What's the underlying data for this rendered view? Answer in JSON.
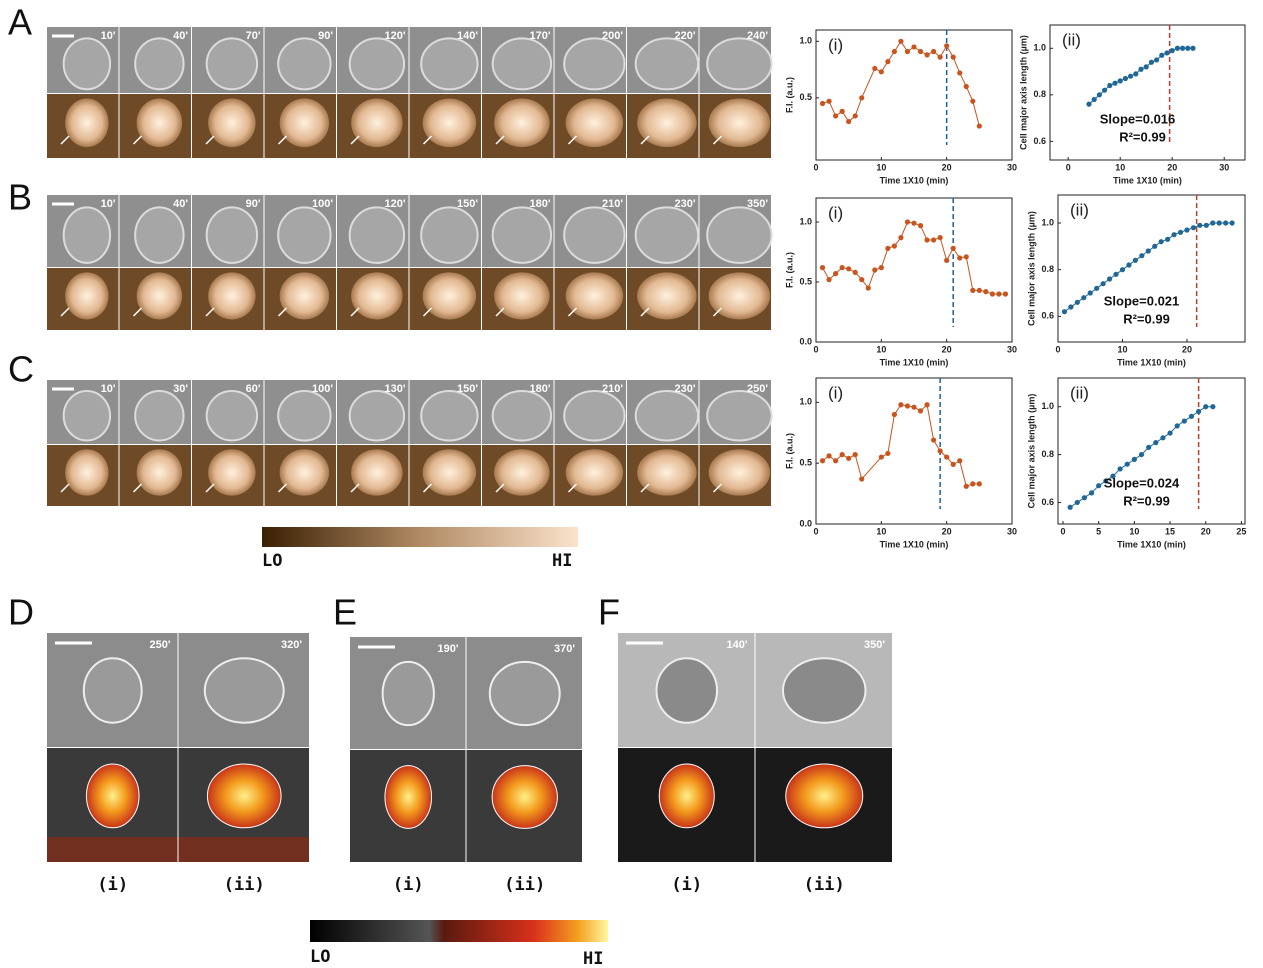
{
  "panels": [
    {
      "label": "A",
      "times": [
        "10'",
        "40'",
        "70'",
        "90'",
        "120'",
        "140'",
        "170'",
        "200'",
        "220'",
        "240'"
      ]
    },
    {
      "label": "B",
      "times": [
        "10'",
        "40'",
        "90'",
        "100'",
        "120'",
        "150'",
        "180'",
        "210'",
        "230'",
        "350'"
      ]
    },
    {
      "label": "C",
      "times": [
        "10'",
        "30'",
        "60'",
        "100'",
        "130'",
        "150'",
        "180'",
        "210'",
        "230'",
        "250'"
      ]
    },
    {
      "label": "D",
      "times": [
        "250'",
        "320'"
      ],
      "sublabels": [
        "(i)",
        "(ii)"
      ]
    },
    {
      "label": "E",
      "times": [
        "190'",
        "370'"
      ],
      "sublabels": [
        "(i)",
        "(ii)"
      ]
    },
    {
      "label": "F",
      "times": [
        "140'",
        "350'"
      ],
      "sublabels": [
        "(i)",
        "(ii)"
      ]
    }
  ],
  "colorbars": [
    {
      "low": "LO",
      "high": "HI"
    },
    {
      "low": "LO",
      "high": "HI"
    }
  ],
  "chart_data": [
    {
      "type": "line",
      "title": "(i)",
      "xlabel": "Time 1X10 (min)",
      "ylabel": "F.I. (a.u.)",
      "x": [
        1,
        2,
        3,
        4,
        5,
        6,
        7,
        9,
        10,
        11,
        12,
        13,
        14,
        15,
        16,
        17,
        18,
        19,
        20,
        21,
        22,
        23,
        24,
        25
      ],
      "series": [
        {
          "color": "#c8541e",
          "values": [
            0.45,
            0.47,
            0.34,
            0.38,
            0.29,
            0.34,
            0.5,
            0.76,
            0.73,
            0.82,
            0.91,
            1.0,
            0.91,
            0.95,
            0.91,
            0.88,
            0.91,
            0.86,
            0.96,
            0.86,
            0.72,
            0.6,
            0.47,
            0.25
          ]
        }
      ],
      "xlim": [
        0,
        30
      ],
      "ylim": [
        -0.05,
        1.1
      ],
      "xticks": [
        0,
        10,
        20,
        30
      ],
      "yticks": [
        0.5,
        {
          "value": 1,
          "label": "1.0"
        }
      ],
      "vline": {
        "x": 20,
        "color": "#1f5fa0"
      }
    },
    {
      "type": "line",
      "title": "(ii)",
      "xlabel": "Time 1X10 (min)",
      "ylabel": "Cell major axis length (µm)",
      "x": [
        4,
        5,
        6,
        7,
        8,
        9,
        10,
        11,
        12,
        13,
        14,
        15,
        16,
        17,
        18,
        19,
        20,
        21,
        22,
        23,
        24
      ],
      "series": [
        {
          "color": "#1f6796",
          "values": [
            0.76,
            0.78,
            0.8,
            0.82,
            0.84,
            0.85,
            0.86,
            0.87,
            0.88,
            0.89,
            0.91,
            0.92,
            0.94,
            0.95,
            0.97,
            0.98,
            0.99,
            1.0,
            1.0,
            1.0,
            1.0
          ]
        }
      ],
      "xlim": [
        -3.5,
        34
      ],
      "ylim": [
        0.52,
        1.1
      ],
      "xticks": [
        0,
        10,
        20,
        30
      ],
      "yticks": [
        0.6,
        0.8,
        {
          "value": 1,
          "label": "1.0"
        }
      ],
      "vline": {
        "x": 19.5,
        "color": "#b5412a"
      },
      "annotations": [
        "Slope=0.016",
        "R²=0.99"
      ]
    },
    {
      "type": "line",
      "title": "(i)",
      "xlabel": "Time 1X10 (min)",
      "ylabel": "F.I. (a.u.)",
      "x": [
        1,
        2,
        3,
        4,
        5,
        6,
        7,
        8,
        9,
        10,
        11,
        12,
        13,
        14,
        15,
        16,
        17,
        18,
        19,
        20,
        21,
        22,
        23,
        24,
        25,
        26,
        27,
        28,
        29
      ],
      "series": [
        {
          "color": "#c8541e",
          "values": [
            0.62,
            0.52,
            0.57,
            0.62,
            0.61,
            0.58,
            0.52,
            0.45,
            0.6,
            0.62,
            0.78,
            0.8,
            0.87,
            1.0,
            0.99,
            0.97,
            0.85,
            0.85,
            0.87,
            0.68,
            0.78,
            0.7,
            0.71,
            0.43,
            0.43,
            0.42,
            0.4,
            0.4,
            0.4
          ]
        }
      ],
      "xlim": [
        0,
        30
      ],
      "ylim": [
        0,
        1.2
      ],
      "xticks": [
        0,
        10,
        20,
        30
      ],
      "yticks": [
        {
          "value": 0,
          "label": "0.0"
        },
        0.5,
        {
          "value": 1,
          "label": "1.0"
        }
      ],
      "vline": {
        "x": 21,
        "color": "#1f5fa0"
      }
    },
    {
      "type": "line",
      "title": "(ii)",
      "xlabel": "Time 1X10 (min)",
      "ylabel": "Cell major axis length (µm)",
      "x": [
        1,
        2,
        3,
        4,
        5,
        6,
        7,
        8,
        9,
        10,
        11,
        12,
        13,
        14,
        15,
        16,
        17,
        18,
        19,
        20,
        21,
        22,
        23,
        24,
        25,
        26,
        27
      ],
      "series": [
        {
          "color": "#1f6796",
          "values": [
            0.62,
            0.64,
            0.66,
            0.68,
            0.7,
            0.72,
            0.74,
            0.76,
            0.78,
            0.8,
            0.82,
            0.84,
            0.86,
            0.88,
            0.9,
            0.92,
            0.93,
            0.95,
            0.96,
            0.97,
            0.98,
            0.99,
            0.99,
            1.0,
            1.0,
            1.0,
            1.0
          ]
        }
      ],
      "xlim": [
        0,
        29
      ],
      "ylim": [
        0.49,
        1.12
      ],
      "xticks": [
        0,
        10,
        20
      ],
      "yticks": [
        0.6,
        0.8,
        {
          "value": 1,
          "label": "1.0"
        }
      ],
      "vline": {
        "x": 21.5,
        "color": "#b5412a"
      },
      "annotations": [
        "Slope=0.021",
        "R²=0.99"
      ]
    },
    {
      "type": "line",
      "title": "(i)",
      "xlabel": "Time 1X10 (min)",
      "ylabel": "F.I. (a.u.)",
      "x": [
        1,
        2,
        3,
        4,
        5,
        6,
        7,
        10,
        11,
        12,
        13,
        14,
        15,
        16,
        17,
        18,
        19,
        20,
        21,
        22,
        23,
        24,
        25
      ],
      "series": [
        {
          "color": "#c8541e",
          "values": [
            0.52,
            0.56,
            0.52,
            0.57,
            0.54,
            0.57,
            0.37,
            0.55,
            0.58,
            0.9,
            0.98,
            0.97,
            0.96,
            0.93,
            0.98,
            0.69,
            0.6,
            0.55,
            0.49,
            0.52,
            0.31,
            0.33,
            0.33
          ]
        }
      ],
      "xlim": [
        0,
        30
      ],
      "ylim": [
        0,
        1.2
      ],
      "xticks": [
        0,
        10,
        20,
        30
      ],
      "yticks": [
        {
          "value": 0,
          "label": "0.0"
        },
        0.5,
        {
          "value": 1,
          "label": "1.0"
        }
      ],
      "vline": {
        "x": 19,
        "color": "#1f5fa0"
      }
    },
    {
      "type": "line",
      "title": "(ii)",
      "xlabel": "Time 1X10 (min)",
      "ylabel": "Cell major axis length (µm)",
      "x": [
        1,
        2,
        3,
        4,
        5,
        6,
        7,
        8,
        9,
        10,
        11,
        12,
        13,
        14,
        15,
        16,
        17,
        18,
        19,
        20,
        21
      ],
      "series": [
        {
          "color": "#1f6796",
          "values": [
            0.58,
            0.6,
            0.62,
            0.64,
            0.67,
            0.69,
            0.71,
            0.74,
            0.76,
            0.78,
            0.8,
            0.83,
            0.85,
            0.87,
            0.89,
            0.92,
            0.94,
            0.96,
            0.98,
            1.0,
            1.0
          ]
        }
      ],
      "xlim": [
        -0.7,
        25.5
      ],
      "ylim": [
        0.51,
        1.12
      ],
      "xticks": [
        0,
        5,
        10,
        15,
        20,
        25
      ],
      "yticks": [
        0.6,
        0.8,
        {
          "value": 1,
          "label": "1.0"
        }
      ],
      "vline": {
        "x": 19,
        "color": "#b5412a"
      },
      "annotations": [
        "Slope=0.024",
        "R²=0.99"
      ]
    }
  ]
}
